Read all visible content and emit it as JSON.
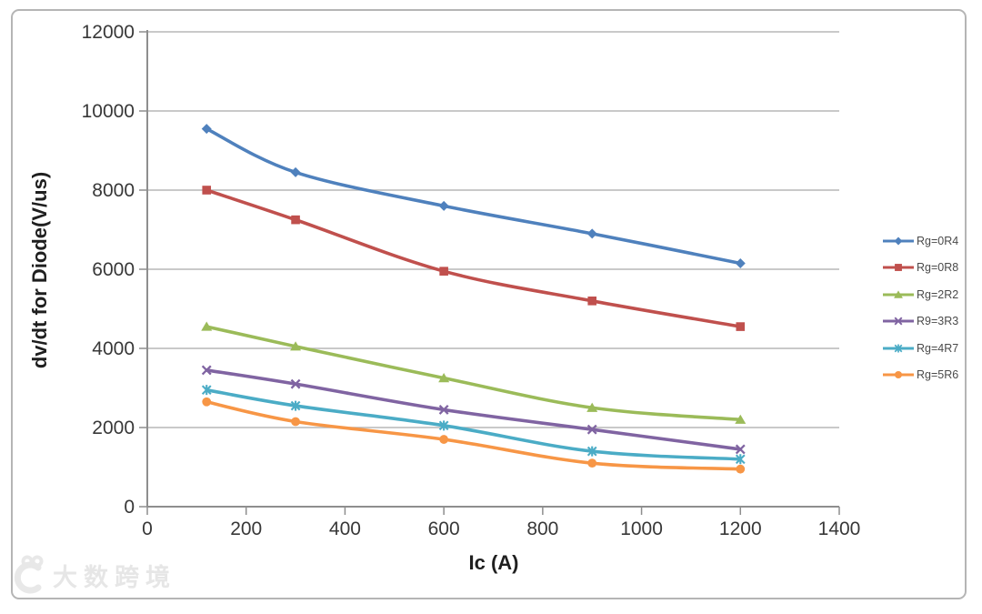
{
  "chart_data": {
    "type": "line",
    "title": "",
    "xlabel": "Ic (A)",
    "ylabel": "dv/dt for Diode(V/us)",
    "x": [
      120,
      300,
      600,
      900,
      1200
    ],
    "xlim": [
      0,
      1400
    ],
    "ylim": [
      0,
      12000
    ],
    "x_ticks": [
      0,
      200,
      400,
      600,
      800,
      1000,
      1200,
      1400
    ],
    "y_ticks": [
      0,
      2000,
      4000,
      6000,
      8000,
      10000,
      12000
    ],
    "grid": "horizontal gridlines at every 2000",
    "legend_position": "right",
    "line_style": "smoothed with markers",
    "series": [
      {
        "name": "Rg=0R4",
        "color": "#4F81BD",
        "marker": "diamond",
        "values": [
          9550,
          8450,
          7600,
          6900,
          6150
        ]
      },
      {
        "name": "Rg=0R8",
        "color": "#C0504D",
        "marker": "square",
        "values": [
          8000,
          7250,
          5950,
          5200,
          4550
        ]
      },
      {
        "name": "Rg=2R2",
        "color": "#9BBB59",
        "marker": "triangle",
        "values": [
          4550,
          4050,
          3250,
          2500,
          2200
        ]
      },
      {
        "name": "R9=3R3",
        "color": "#8064A2",
        "marker": "x",
        "values": [
          3450,
          3100,
          2450,
          1950,
          1450
        ]
      },
      {
        "name": "Rg=4R7",
        "color": "#4BACC6",
        "marker": "asterisk",
        "values": [
          2950,
          2550,
          2050,
          1400,
          1200
        ]
      },
      {
        "name": "Rg=5R6",
        "color": "#F79646",
        "marker": "circle",
        "values": [
          2650,
          2150,
          1700,
          1100,
          950
        ]
      }
    ]
  },
  "watermark": {
    "text": "大数跨境"
  },
  "colors": {
    "gridline": "#b7b7b7",
    "axis": "#8e8e8e",
    "tick_label": "#383838",
    "frame_border": "#b5b5b5"
  }
}
